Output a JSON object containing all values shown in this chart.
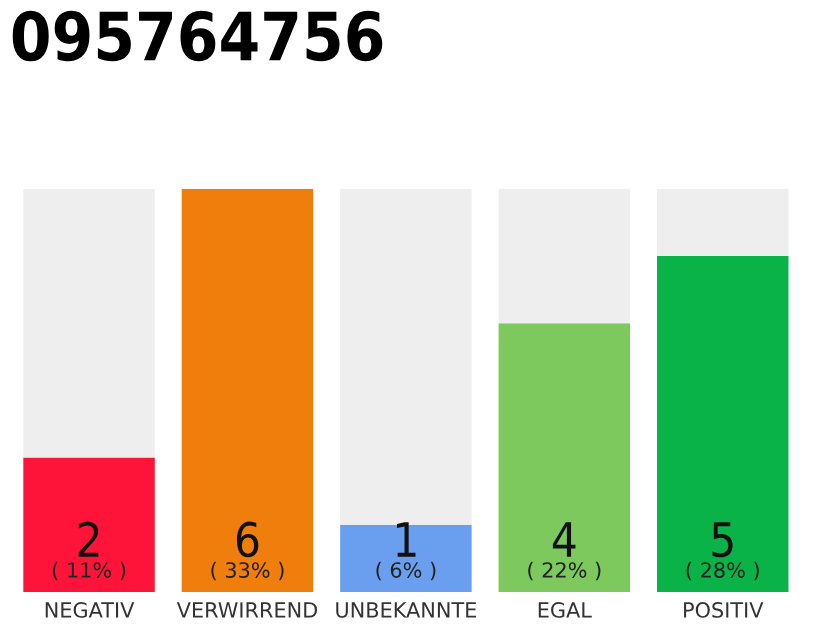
{
  "chart_data": {
    "type": "bar",
    "title": "095764756",
    "categories": [
      "NEGATIV",
      "VERWIRREND",
      "UNBEKANNTE",
      "EGAL",
      "POSITIV"
    ],
    "stacked": true,
    "ylim": [
      0,
      6
    ],
    "tick_labels": "x",
    "grid": false,
    "legend": false,
    "series": [
      {
        "colors": [
          "#ff1439",
          "#f07e0d",
          "#6a9fef",
          "#7dc95e",
          "#0ab348"
        ],
        "values": [
          2,
          6,
          1,
          4,
          5
        ],
        "value_labels": [
          "2\n( 11% )",
          "6\n( 33% )",
          "1\n( 6% )",
          "4\n( 22% )",
          "5\n( 28% )"
        ]
      },
      {
        "color": "#eeeeee",
        "values": [
          4,
          0,
          5,
          2,
          1
        ]
      }
    ]
  }
}
